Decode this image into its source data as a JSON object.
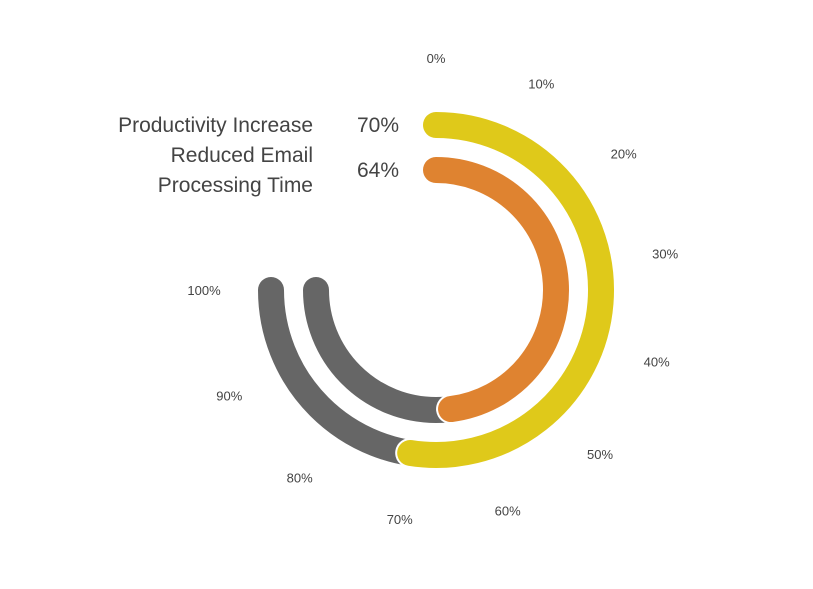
{
  "chart_data": {
    "type": "radial-bar",
    "max": 100,
    "ticks": [
      "0%",
      "10%",
      "20%",
      "30%",
      "40%",
      "50%",
      "60%",
      "70%",
      "80%",
      "90%",
      "100%"
    ],
    "series": [
      {
        "name": "Productivity Increase",
        "value": 70,
        "value_label": "70%",
        "color": "#dfc91a",
        "track_color": "#666666"
      },
      {
        "name": "Reduced Email Processing Time",
        "value": 64,
        "value_label": "64%",
        "color": "#df8330",
        "track_color": "#666666"
      }
    ]
  }
}
